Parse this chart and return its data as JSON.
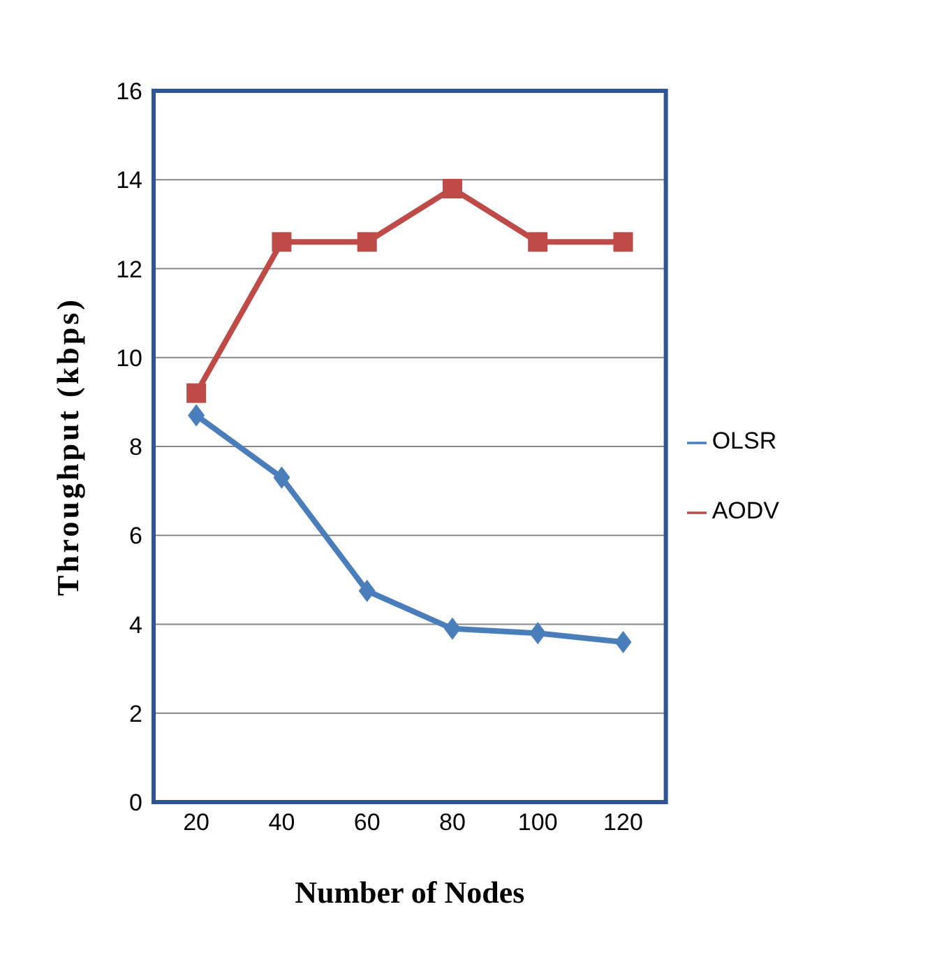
{
  "chart_data": {
    "type": "line",
    "xlabel": "Number of Nodes",
    "ylabel": "Throughput (kbps)",
    "categories": [
      "20",
      "40",
      "60",
      "80",
      "100",
      "120"
    ],
    "series": [
      {
        "name": "OLSR",
        "color": "#4a7ebb",
        "values": [
          8.7,
          7.3,
          4.75,
          3.9,
          3.8,
          3.6
        ],
        "marker": "diamond"
      },
      {
        "name": "AODV",
        "color": "#be4b48",
        "values": [
          9.2,
          12.6,
          12.6,
          13.8,
          12.6,
          12.6
        ],
        "marker": "square"
      }
    ],
    "ylim": [
      0,
      16
    ],
    "yticks": [
      0,
      2,
      4,
      6,
      8,
      10,
      12,
      14,
      16
    ],
    "grid": "y",
    "legend": "right",
    "line_style": "solid"
  }
}
